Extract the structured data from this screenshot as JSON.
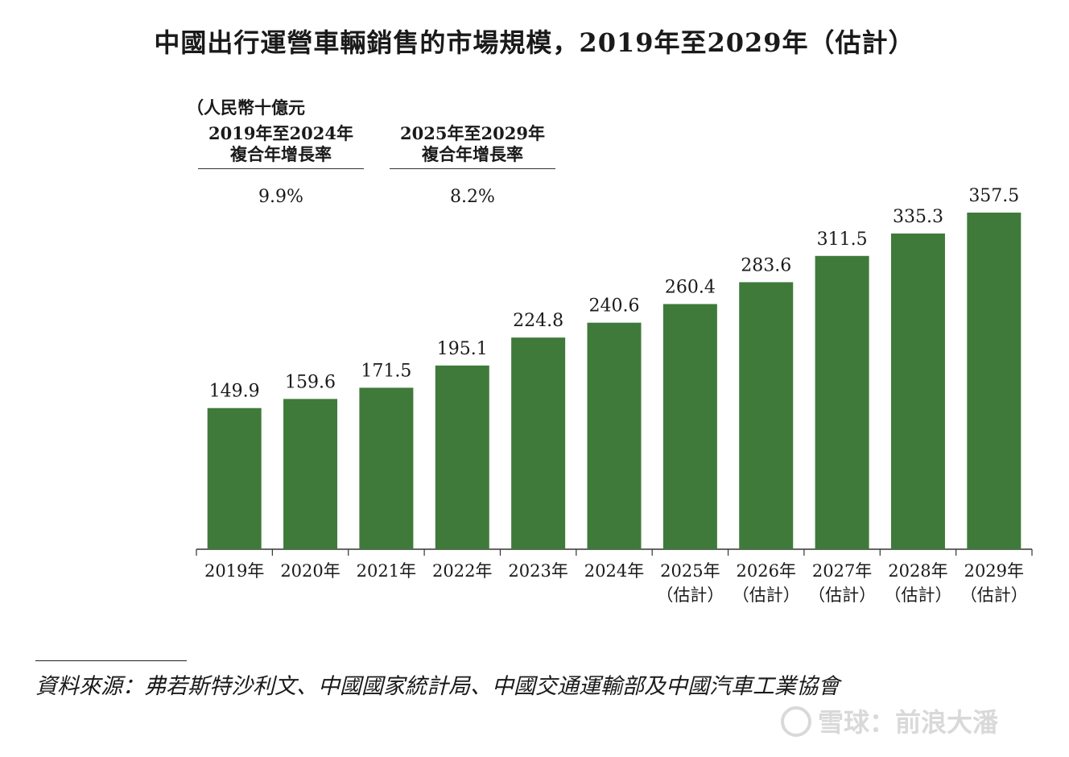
{
  "title": "中國出行運營車輛銷售的市場規模，2019年至2029年（估計）",
  "unit": "（人民幣十億元",
  "cagr": [
    {
      "line1": "2019年至2024年",
      "line2": "複合年增長率",
      "value": "9.9%"
    },
    {
      "line1": "2025年至2029年",
      "line2": "複合年增長率",
      "value": "8.2%"
    }
  ],
  "chart_data": {
    "type": "bar",
    "title": "中國出行運營車輛銷售的市場規模，2019年至2029年（估計）",
    "ylabel": "人民幣十億元",
    "xlabel": "",
    "ylim": [
      0,
      357.5
    ],
    "grid": false,
    "categories": [
      "2019年",
      "2020年",
      "2021年",
      "2022年",
      "2023年",
      "2024年",
      "2025年",
      "2026年",
      "2027年",
      "2028年",
      "2029年"
    ],
    "category_sublabels": [
      "",
      "",
      "",
      "",
      "",
      "",
      "（估計）",
      "（估計）",
      "（估計）",
      "（估計）",
      "（估計）"
    ],
    "values": [
      149.9,
      159.6,
      171.5,
      195.1,
      224.8,
      240.6,
      260.4,
      283.6,
      311.5,
      335.3,
      357.5
    ],
    "value_labels": [
      "149.9",
      "159.6",
      "171.5",
      "195.1",
      "224.8",
      "240.6",
      "260.4",
      "283.6",
      "311.5",
      "335.3",
      "357.5"
    ],
    "bar_color": "#3f7a3a"
  },
  "source": "資料來源：弗若斯特沙利文、中國國家統計局、中國交通運輸部及中國汽車工業協會",
  "watermark": "雪球：前浪大潘"
}
